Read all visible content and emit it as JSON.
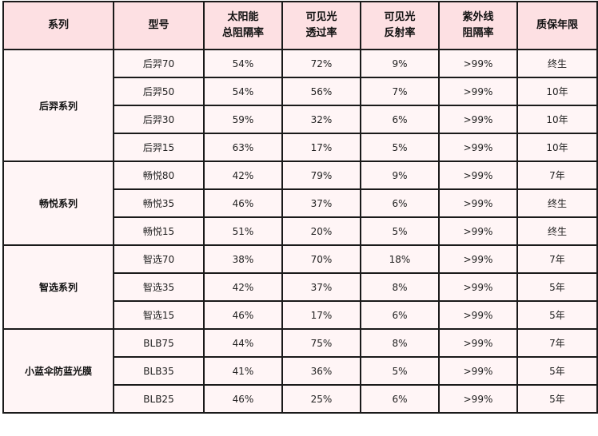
{
  "headers": [
    [
      "系列"
    ],
    [
      "型号"
    ],
    [
      "太阳能",
      "总阻隔率"
    ],
    [
      "可见光",
      "透过率"
    ],
    [
      "可见光",
      "反射率"
    ],
    [
      "紫外线",
      "阻隔率"
    ],
    [
      "质保年限"
    ]
  ],
  "groups": [
    {
      "series": "后羿系列",
      "rows": [
        {
          "model": "后羿70",
          "solar": "54%",
          "vlt": "72%",
          "vlr": "9%",
          "uv": ">99%",
          "warranty": "终生"
        },
        {
          "model": "后羿50",
          "solar": "54%",
          "vlt": "56%",
          "vlr": "7%",
          "uv": ">99%",
          "warranty": "10年"
        },
        {
          "model": "后羿30",
          "solar": "59%",
          "vlt": "32%",
          "vlr": "6%",
          "uv": ">99%",
          "warranty": "10年"
        },
        {
          "model": "后羿15",
          "solar": "63%",
          "vlt": "17%",
          "vlr": "5%",
          "uv": ">99%",
          "warranty": "10年"
        }
      ]
    },
    {
      "series": "畅悦系列",
      "rows": [
        {
          "model": "畅悦80",
          "solar": "42%",
          "vlt": "79%",
          "vlr": "9%",
          "uv": ">99%",
          "warranty": "7年"
        },
        {
          "model": "畅悦35",
          "solar": "46%",
          "vlt": "37%",
          "vlr": "6%",
          "uv": ">99%",
          "warranty": "终生"
        },
        {
          "model": "畅悦15",
          "solar": "51%",
          "vlt": "20%",
          "vlr": "5%",
          "uv": ">99%",
          "warranty": "终生"
        }
      ]
    },
    {
      "series": "智选系列",
      "rows": [
        {
          "model": "智选70",
          "solar": "38%",
          "vlt": "70%",
          "vlr": "18%",
          "uv": ">99%",
          "warranty": "7年"
        },
        {
          "model": "智选35",
          "solar": "42%",
          "vlt": "37%",
          "vlr": "8%",
          "uv": ">99%",
          "warranty": "5年"
        },
        {
          "model": "智选15",
          "solar": "46%",
          "vlt": "17%",
          "vlr": "6%",
          "uv": ">99%",
          "warranty": "5年"
        }
      ]
    },
    {
      "series": "小蓝伞防蓝光膜",
      "rows": [
        {
          "model": "BLB75",
          "solar": "44%",
          "vlt": "75%",
          "vlr": "8%",
          "uv": ">99%",
          "warranty": "7年"
        },
        {
          "model": "BLB35",
          "solar": "41%",
          "vlt": "36%",
          "vlr": "5%",
          "uv": ">99%",
          "warranty": "5年"
        },
        {
          "model": "BLB25",
          "solar": "46%",
          "vlt": "25%",
          "vlr": "6%",
          "uv": ">99%",
          "warranty": "5年"
        }
      ]
    }
  ]
}
